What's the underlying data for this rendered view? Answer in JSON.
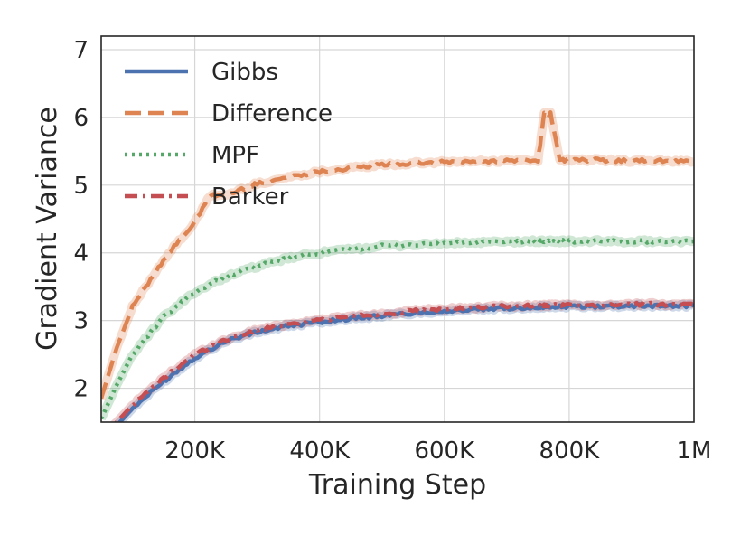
{
  "chart_data": {
    "type": "line",
    "xlabel": "Training Step",
    "ylabel": "Gradient Variance",
    "xlim": [
      50000,
      1000000
    ],
    "ylim": [
      1.5,
      7.2
    ],
    "xticks": [
      200000,
      400000,
      600000,
      800000,
      1000000
    ],
    "xtick_labels": [
      "200K",
      "400K",
      "600K",
      "800K",
      "1M"
    ],
    "yticks": [
      2,
      3,
      4,
      5,
      6,
      7
    ],
    "ytick_labels": [
      "2",
      "3",
      "4",
      "5",
      "6",
      "7"
    ],
    "grid": true,
    "legend_position": "top-left",
    "x": [
      50000,
      75000,
      100000,
      150000,
      200000,
      250000,
      300000,
      350000,
      400000,
      450000,
      500000,
      550000,
      600000,
      650000,
      700000,
      750000,
      770000,
      800000,
      850000,
      900000,
      950000,
      1000000
    ],
    "series": [
      {
        "name": "Gibbs",
        "color": "#4c72b0",
        "dash": "solid",
        "values": [
          1.25,
          1.45,
          1.7,
          2.1,
          2.45,
          2.7,
          2.83,
          2.92,
          2.98,
          3.03,
          3.07,
          3.11,
          3.14,
          3.16,
          3.18,
          3.2,
          3.2,
          3.21,
          3.21,
          3.22,
          3.22,
          3.22
        ]
      },
      {
        "name": "Difference",
        "color": "#dd8452",
        "dash": "dashed",
        "values": [
          1.85,
          2.6,
          3.2,
          3.9,
          4.45,
          4.85,
          5.02,
          5.12,
          5.2,
          5.25,
          5.3,
          5.32,
          5.34,
          5.35,
          5.36,
          5.37,
          6.05,
          5.37,
          5.37,
          5.36,
          5.36,
          5.35
        ]
      },
      {
        "name": "MPF",
        "color": "#55a868",
        "dash": "dotted",
        "values": [
          1.55,
          2.05,
          2.5,
          3.05,
          3.42,
          3.65,
          3.8,
          3.92,
          4.0,
          4.05,
          4.1,
          4.12,
          4.14,
          4.15,
          4.16,
          4.17,
          4.17,
          4.17,
          4.17,
          4.17,
          4.17,
          4.17
        ]
      },
      {
        "name": "Barker",
        "color": "#c44e52",
        "dash": "dashdot",
        "values": [
          1.3,
          1.5,
          1.75,
          2.15,
          2.5,
          2.72,
          2.86,
          2.95,
          3.01,
          3.06,
          3.1,
          3.14,
          3.17,
          3.19,
          3.21,
          3.22,
          3.22,
          3.23,
          3.23,
          3.24,
          3.24,
          3.24
        ]
      }
    ]
  }
}
